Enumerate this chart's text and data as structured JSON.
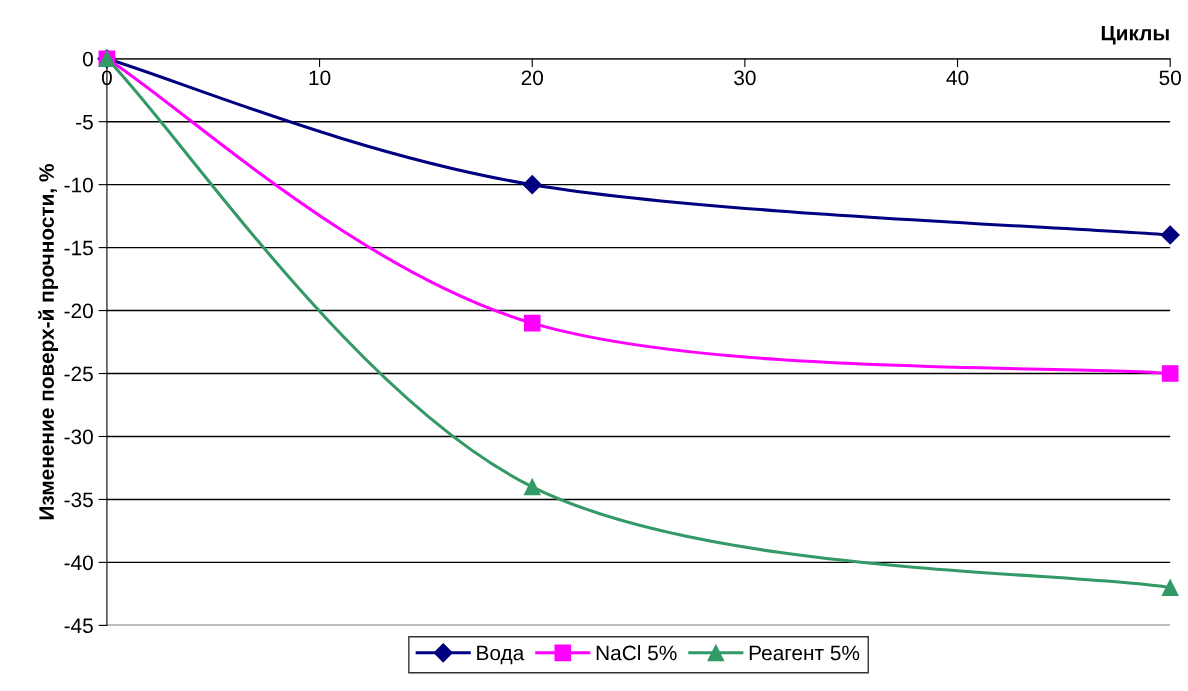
{
  "chart_data": {
    "type": "line",
    "xlabel": "Циклы",
    "ylabel": "Изменение поверх-й прочности, %",
    "x": [
      0,
      20,
      50
    ],
    "series": [
      {
        "name": "Вода",
        "color": "#000080",
        "marker": "diamond",
        "values": [
          0,
          -10,
          -14
        ]
      },
      {
        "name": "NaCl 5%",
        "color": "#ff00ff",
        "marker": "square",
        "values": [
          0,
          -21,
          -25
        ]
      },
      {
        "name": "Реагент 5%",
        "color": "#339966",
        "marker": "triangle",
        "values": [
          0,
          -34,
          -42
        ]
      }
    ],
    "xlim": [
      0,
      50
    ],
    "xticks": [
      0,
      10,
      20,
      30,
      40,
      50
    ],
    "ylim": [
      -45,
      0
    ],
    "yticks": [
      0,
      -5,
      -10,
      -15,
      -20,
      -25,
      -30,
      -35,
      -40,
      -45
    ],
    "grid": "y",
    "legend": "bottom",
    "line_style": "solid"
  }
}
